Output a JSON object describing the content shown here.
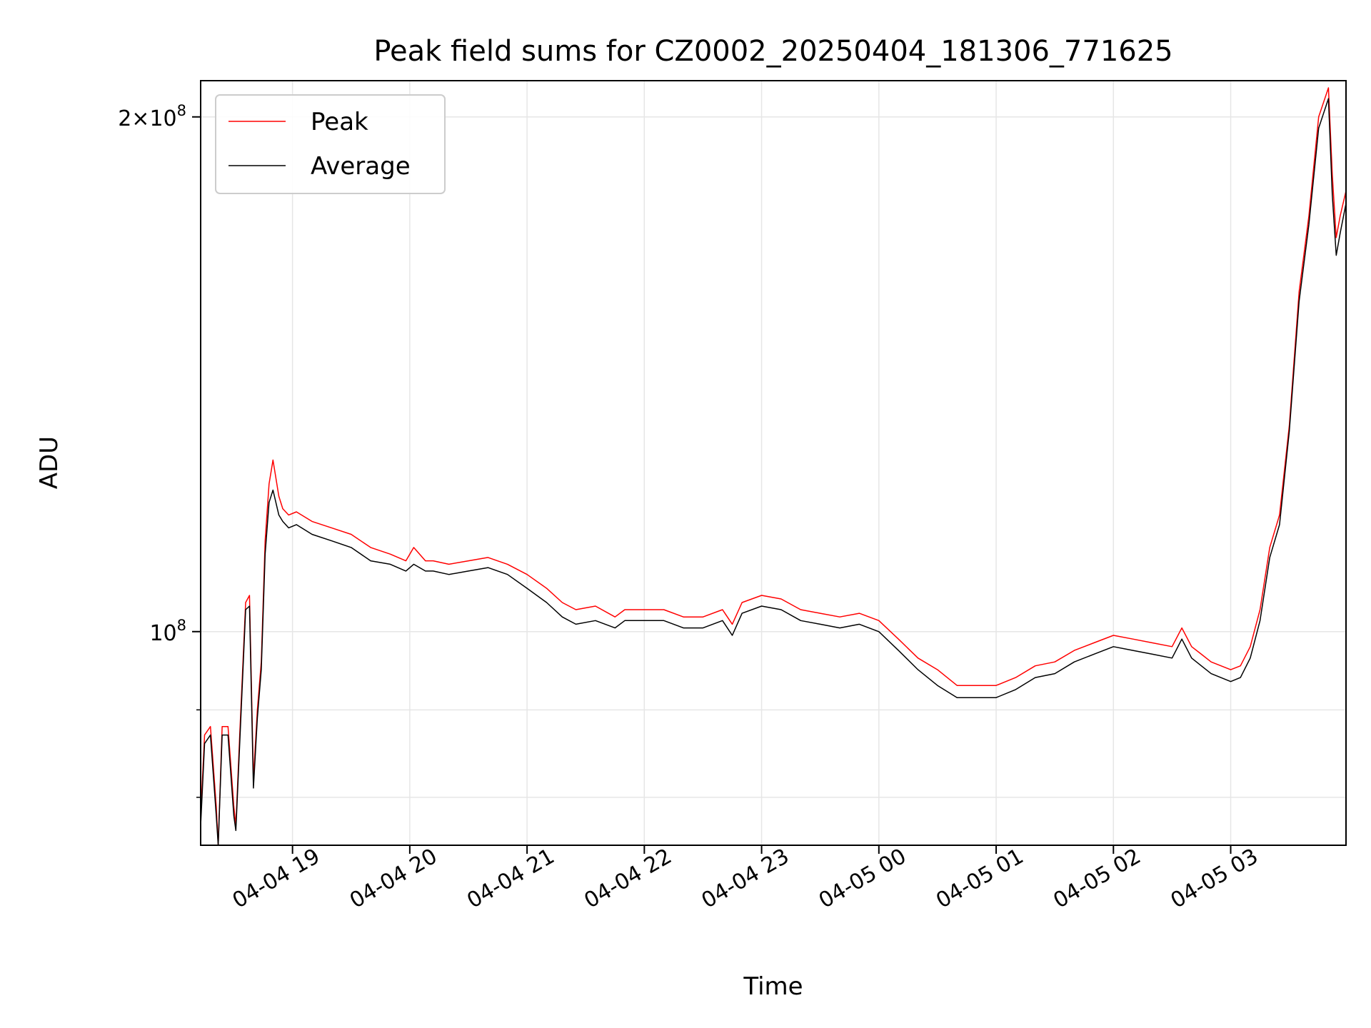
{
  "chart_data": {
    "type": "line",
    "title": "Peak field sums for CZ0002_20250404_181306_771625",
    "xlabel": "Time",
    "ylabel": "ADU",
    "x_unit": "hours since 2025-04-04 18:13:06",
    "xlim": [
      "2025-04-04 18:13",
      "2025-04-05 03:59"
    ],
    "ylim": [
      75000000,
      210000000
    ],
    "yscale": "log",
    "grid": true,
    "legend_position": "top-left",
    "x_ticks": [
      "04-04 19",
      "04-04 20",
      "04-04 21",
      "04-04 22",
      "04-04 23",
      "04-05 00",
      "04-05 01",
      "04-05 02",
      "04-05 03"
    ],
    "y_ticks": [
      {
        "value": 100000000,
        "base": "10",
        "exp": "8",
        "coef": ""
      },
      {
        "value": 200000000,
        "base": "10",
        "exp": "8",
        "coef": "2×"
      }
    ],
    "series": [
      {
        "name": "Peak",
        "color": "#ff0000",
        "x": [
          "2025-04-04 18:13",
          "2025-04-04 18:15",
          "2025-04-04 18:18",
          "2025-04-04 18:21",
          "2025-04-04 18:22",
          "2025-04-04 18:24",
          "2025-04-04 18:27",
          "2025-04-04 18:30",
          "2025-04-04 18:31",
          "2025-04-04 18:33",
          "2025-04-04 18:36",
          "2025-04-04 18:38",
          "2025-04-04 18:40",
          "2025-04-04 18:42",
          "2025-04-04 18:44",
          "2025-04-04 18:46",
          "2025-04-04 18:48",
          "2025-04-04 18:50",
          "2025-04-04 18:53",
          "2025-04-04 18:55",
          "2025-04-04 18:58",
          "2025-04-04 19:02",
          "2025-04-04 19:10",
          "2025-04-04 19:20",
          "2025-04-04 19:30",
          "2025-04-04 19:40",
          "2025-04-04 19:50",
          "2025-04-04 19:58",
          "2025-04-04 20:02",
          "2025-04-04 20:08",
          "2025-04-04 20:12",
          "2025-04-04 20:20",
          "2025-04-04 20:30",
          "2025-04-04 20:40",
          "2025-04-04 20:50",
          "2025-04-04 21:00",
          "2025-04-04 21:10",
          "2025-04-04 21:18",
          "2025-04-04 21:25",
          "2025-04-04 21:35",
          "2025-04-04 21:45",
          "2025-04-04 21:50",
          "2025-04-04 22:00",
          "2025-04-04 22:10",
          "2025-04-04 22:20",
          "2025-04-04 22:30",
          "2025-04-04 22:40",
          "2025-04-04 22:45",
          "2025-04-04 22:50",
          "2025-04-04 23:00",
          "2025-04-04 23:10",
          "2025-04-04 23:20",
          "2025-04-04 23:30",
          "2025-04-04 23:40",
          "2025-04-04 23:50",
          "2025-04-05 00:00",
          "2025-04-05 00:10",
          "2025-04-05 00:20",
          "2025-04-05 00:30",
          "2025-04-05 00:40",
          "2025-04-05 00:50",
          "2025-04-05 01:00",
          "2025-04-05 01:10",
          "2025-04-05 01:20",
          "2025-04-05 01:30",
          "2025-04-05 01:40",
          "2025-04-05 01:50",
          "2025-04-05 02:00",
          "2025-04-05 02:10",
          "2025-04-05 02:20",
          "2025-04-05 02:30",
          "2025-04-05 02:35",
          "2025-04-05 02:40",
          "2025-04-05 02:45",
          "2025-04-05 02:50",
          "2025-04-05 03:00",
          "2025-04-05 03:05",
          "2025-04-05 03:10",
          "2025-04-05 03:15",
          "2025-04-05 03:20",
          "2025-04-05 03:25",
          "2025-04-05 03:30",
          "2025-04-05 03:35",
          "2025-04-05 03:40",
          "2025-04-05 03:45",
          "2025-04-05 03:50",
          "2025-04-05 03:52",
          "2025-04-05 03:54",
          "2025-04-05 03:56",
          "2025-04-05 03:59"
        ],
        "values": [
          78000000,
          87000000,
          88000000,
          79000000,
          74000000,
          88000000,
          88000000,
          79000000,
          77000000,
          87000000,
          104000000,
          105000000,
          82000000,
          90000000,
          96000000,
          113000000,
          122000000,
          126000000,
          120000000,
          118000000,
          117000000,
          117500000,
          116000000,
          115000000,
          114000000,
          112000000,
          111000000,
          110000000,
          112000000,
          110000000,
          110000000,
          109500000,
          110000000,
          110500000,
          109500000,
          108000000,
          106000000,
          104000000,
          103000000,
          103500000,
          102000000,
          103000000,
          103000000,
          103000000,
          102000000,
          102000000,
          103000000,
          101000000,
          104000000,
          105000000,
          104500000,
          103000000,
          102500000,
          102000000,
          102500000,
          101500000,
          99000000,
          96500000,
          95000000,
          93000000,
          93000000,
          93000000,
          94000000,
          95500000,
          96000000,
          97500000,
          98500000,
          99500000,
          99000000,
          98500000,
          98000000,
          100500000,
          98000000,
          97000000,
          96000000,
          95000000,
          95500000,
          98000000,
          103000000,
          112000000,
          117000000,
          132000000,
          158000000,
          175000000,
          200000000,
          208000000,
          185000000,
          170000000,
          175000000,
          181000000
        ]
      },
      {
        "name": "Average",
        "color": "#000000",
        "x": [
          "2025-04-04 18:13",
          "2025-04-04 18:15",
          "2025-04-04 18:18",
          "2025-04-04 18:21",
          "2025-04-04 18:22",
          "2025-04-04 18:24",
          "2025-04-04 18:27",
          "2025-04-04 18:30",
          "2025-04-04 18:31",
          "2025-04-04 18:33",
          "2025-04-04 18:36",
          "2025-04-04 18:38",
          "2025-04-04 18:40",
          "2025-04-04 18:42",
          "2025-04-04 18:44",
          "2025-04-04 18:46",
          "2025-04-04 18:48",
          "2025-04-04 18:50",
          "2025-04-04 18:53",
          "2025-04-04 18:55",
          "2025-04-04 18:58",
          "2025-04-04 19:02",
          "2025-04-04 19:10",
          "2025-04-04 19:20",
          "2025-04-04 19:30",
          "2025-04-04 19:40",
          "2025-04-04 19:50",
          "2025-04-04 19:58",
          "2025-04-04 20:02",
          "2025-04-04 20:08",
          "2025-04-04 20:12",
          "2025-04-04 20:20",
          "2025-04-04 20:30",
          "2025-04-04 20:40",
          "2025-04-04 20:50",
          "2025-04-04 21:00",
          "2025-04-04 21:10",
          "2025-04-04 21:18",
          "2025-04-04 21:25",
          "2025-04-04 21:35",
          "2025-04-04 21:45",
          "2025-04-04 21:50",
          "2025-04-04 22:00",
          "2025-04-04 22:10",
          "2025-04-04 22:20",
          "2025-04-04 22:30",
          "2025-04-04 22:40",
          "2025-04-04 22:45",
          "2025-04-04 22:50",
          "2025-04-04 23:00",
          "2025-04-04 23:10",
          "2025-04-04 23:20",
          "2025-04-04 23:30",
          "2025-04-04 23:40",
          "2025-04-04 23:50",
          "2025-04-05 00:00",
          "2025-04-05 00:10",
          "2025-04-05 00:20",
          "2025-04-05 00:30",
          "2025-04-05 00:40",
          "2025-04-05 00:50",
          "2025-04-05 01:00",
          "2025-04-05 01:10",
          "2025-04-05 01:20",
          "2025-04-05 01:30",
          "2025-04-05 01:40",
          "2025-04-05 01:50",
          "2025-04-05 02:00",
          "2025-04-05 02:10",
          "2025-04-05 02:20",
          "2025-04-05 02:30",
          "2025-04-05 02:35",
          "2025-04-05 02:40",
          "2025-04-05 02:45",
          "2025-04-05 02:50",
          "2025-04-05 03:00",
          "2025-04-05 03:05",
          "2025-04-05 03:10",
          "2025-04-05 03:15",
          "2025-04-05 03:20",
          "2025-04-05 03:25",
          "2025-04-05 03:30",
          "2025-04-05 03:35",
          "2025-04-05 03:40",
          "2025-04-05 03:45",
          "2025-04-05 03:50",
          "2025-04-05 03:52",
          "2025-04-05 03:54",
          "2025-04-05 03:56",
          "2025-04-05 03:59"
        ],
        "values": [
          77000000,
          86000000,
          87000000,
          78000000,
          73500000,
          87000000,
          87000000,
          78000000,
          76500000,
          86000000,
          103000000,
          103500000,
          81000000,
          89000000,
          95000000,
          111000000,
          119000000,
          121000000,
          117000000,
          116000000,
          115000000,
          115500000,
          114000000,
          113000000,
          112000000,
          110000000,
          109500000,
          108500000,
          109500000,
          108500000,
          108500000,
          108000000,
          108500000,
          109000000,
          108000000,
          106000000,
          104000000,
          102000000,
          101000000,
          101500000,
          100500000,
          101500000,
          101500000,
          101500000,
          100500000,
          100500000,
          101500000,
          99500000,
          102500000,
          103500000,
          103000000,
          101500000,
          101000000,
          100500000,
          101000000,
          100000000,
          97500000,
          95000000,
          93000000,
          91500000,
          91500000,
          91500000,
          92500000,
          94000000,
          94500000,
          96000000,
          97000000,
          98000000,
          97500000,
          97000000,
          96500000,
          99000000,
          96500000,
          95500000,
          94500000,
          93500000,
          94000000,
          96500000,
          101500000,
          110500000,
          115500000,
          131000000,
          156000000,
          173000000,
          197000000,
          205000000,
          180000000,
          166000000,
          171000000,
          178000000
        ]
      }
    ]
  }
}
